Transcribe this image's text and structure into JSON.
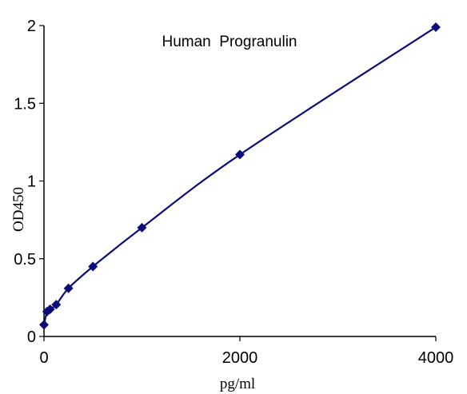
{
  "chart_data": {
    "type": "scatter",
    "title": "Human  Progranulin",
    "xlabel": "pg/ml",
    "ylabel": "OD450",
    "xlim": [
      0,
      4000
    ],
    "ylim": [
      0,
      2
    ],
    "x_ticks": [
      "0",
      "2000",
      "4000"
    ],
    "y_ticks": [
      "0",
      "0.5",
      "1",
      "1.5",
      "2"
    ],
    "grid": false,
    "series": [
      {
        "x": [
          0,
          31.25,
          62.5,
          125,
          250,
          500,
          1000,
          2000,
          4000
        ],
        "y": [
          0.075,
          0.16,
          0.175,
          0.205,
          0.31,
          0.45,
          0.7,
          1.17,
          1.99
        ],
        "marker": "diamond",
        "line": "smooth"
      }
    ],
    "colors": {
      "series": "#0d0d7a",
      "axis": "#000000"
    }
  }
}
